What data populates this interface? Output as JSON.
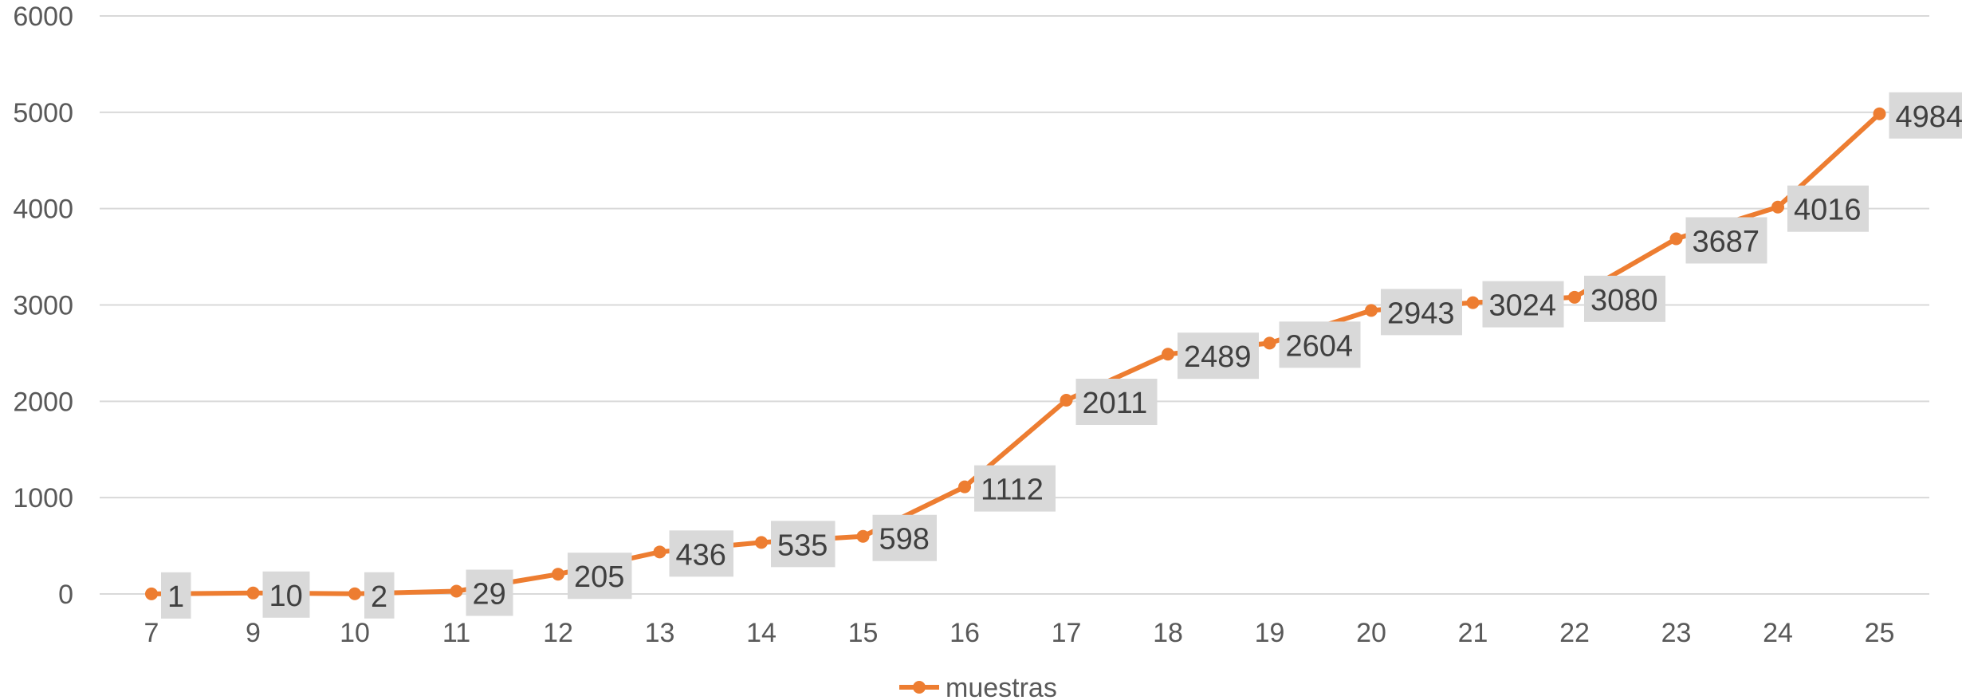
{
  "chart_data": {
    "type": "line",
    "title": "",
    "xlabel": "",
    "ylabel": "",
    "categories": [
      "7",
      "9",
      "10",
      "11",
      "12",
      "13",
      "14",
      "15",
      "16",
      "17",
      "18",
      "19",
      "20",
      "21",
      "22",
      "23",
      "24",
      "25"
    ],
    "series": [
      {
        "name": "muestras",
        "values": [
          1,
          10,
          2,
          29,
          205,
          436,
          535,
          598,
          1112,
          2011,
          2489,
          2604,
          2943,
          3024,
          3080,
          3687,
          4016,
          4984
        ],
        "color": "#ED7D31"
      }
    ],
    "ylim": [
      0,
      6000
    ],
    "y_ticks": [
      0,
      1000,
      2000,
      3000,
      4000,
      5000,
      6000
    ],
    "grid": true,
    "data_labels": true,
    "legend": "bottom",
    "colors": {
      "series": "#ED7D31",
      "grid": "#D9D9D9",
      "axis": "#D9D9D9",
      "label_bg": "#D9D9D9",
      "tick_text": "#595959"
    }
  }
}
